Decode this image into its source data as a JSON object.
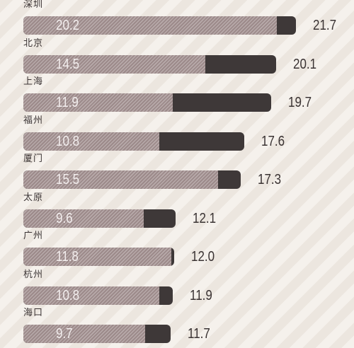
{
  "chart_data": {
    "type": "bar",
    "orientation": "horizontal",
    "categories": [
      "深圳",
      "北京",
      "上海",
      "福州",
      "厦门",
      "太原",
      "广州",
      "杭州",
      "海口"
    ],
    "series": [
      {
        "values": [
          20.2,
          14.5,
          11.9,
          10.8,
          15.5,
          9.6,
          11.8,
          10.8,
          9.7
        ]
      },
      {
        "values": [
          21.7,
          20.1,
          19.7,
          17.6,
          17.3,
          12.1,
          12.0,
          11.9,
          11.7
        ]
      }
    ],
    "value_labels": {
      "inner": [
        "20.2",
        "14.5",
        "11.9",
        "10.8",
        "15.5",
        "9.6",
        "11.8",
        "10.8",
        "9.7"
      ],
      "outer": [
        "21.7",
        "20.1",
        "19.7",
        "17.6",
        "17.3",
        "12.1",
        "12.0",
        "11.9",
        "11.7"
      ]
    },
    "colors": {
      "inner": "#9c8a8a",
      "outer": "#3e3838",
      "background": "#ece6df"
    },
    "xlim": [
      0,
      21.7
    ],
    "grid": false,
    "legend": "none"
  }
}
